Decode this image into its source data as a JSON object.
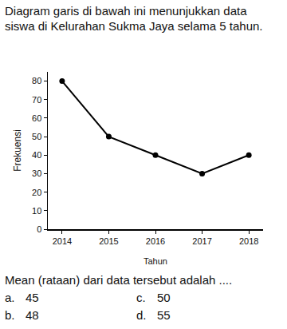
{
  "question": "Diagram garis di bawah ini menunjukkan data siswa di Kelurahan Sukma Jaya selama 5 tahun.",
  "chart_data": {
    "type": "line",
    "x_label": "Tahun",
    "y_label": "Frekuensi",
    "categories": [
      "2014",
      "2015",
      "2016",
      "2017",
      "2018"
    ],
    "values": [
      80,
      50,
      40,
      30,
      40
    ],
    "color": "#000000",
    "marker": "circle",
    "line_style": "solid",
    "ylim": [
      0,
      85
    ],
    "yticks": [
      0,
      10,
      20,
      30,
      40,
      50,
      60,
      70,
      80
    ],
    "grid": false
  },
  "prompt": "Mean (rataan) dari data tersebut adalah ....",
  "options": [
    {
      "letter": "a.",
      "text": "45"
    },
    {
      "letter": "b.",
      "text": "48"
    },
    {
      "letter": "c.",
      "text": "50"
    },
    {
      "letter": "d.",
      "text": "55"
    }
  ]
}
